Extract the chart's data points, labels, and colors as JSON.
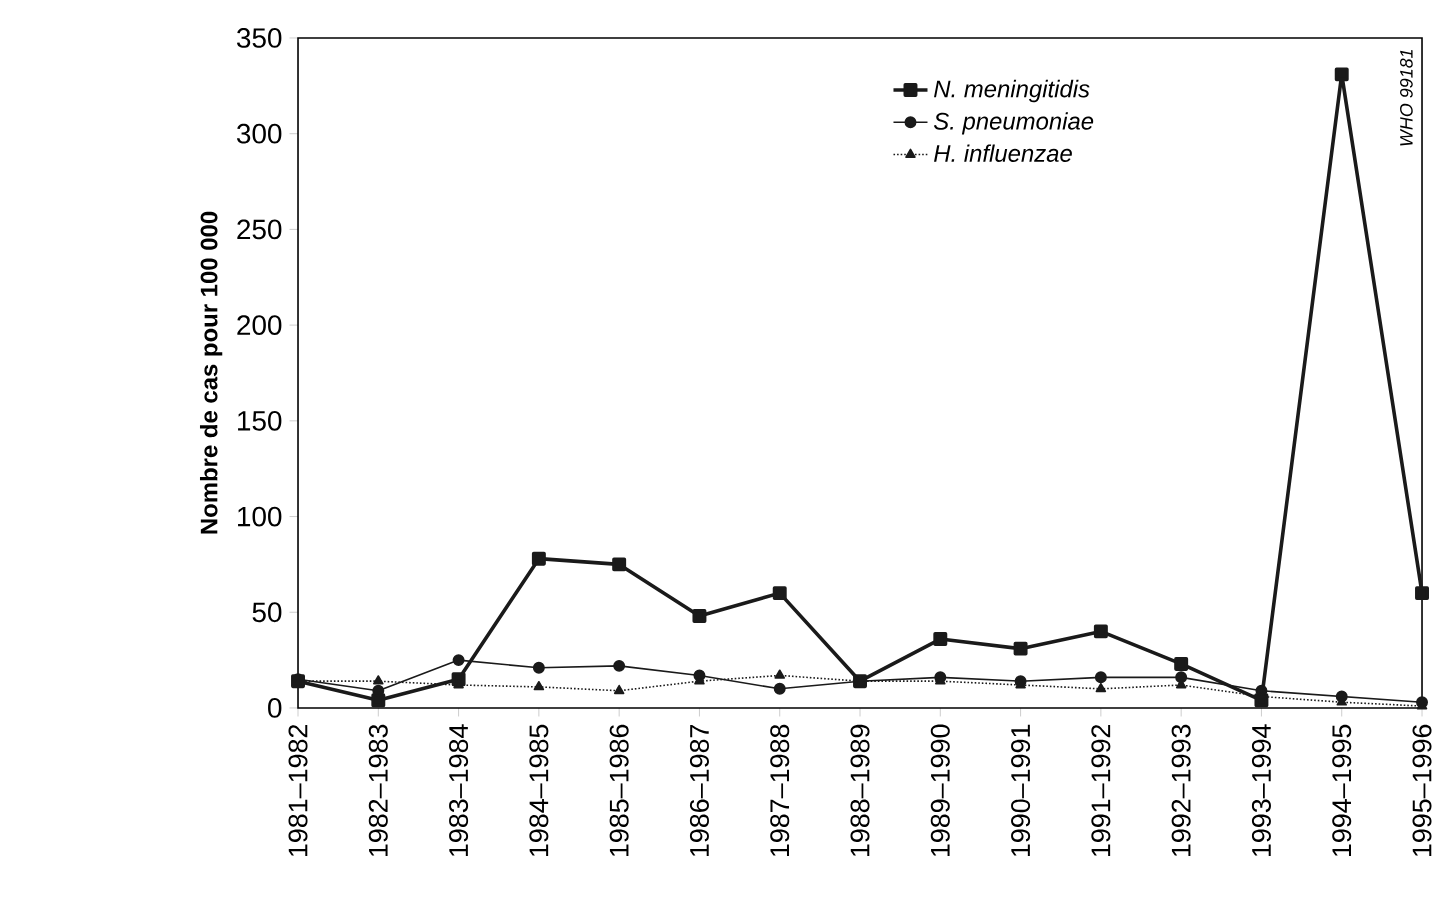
{
  "chart_data": {
    "type": "line",
    "ylabel": "Nombre de cas pour 100 000",
    "categories": [
      "1981–1982",
      "1982–1983",
      "1983–1984",
      "1984–1985",
      "1985–1986",
      "1986–1987",
      "1987–1988",
      "1988–1989",
      "1989–1990",
      "1990–1991",
      "1991–1992",
      "1992–1993",
      "1993–1994",
      "1994–1995",
      "1995–1996"
    ],
    "series": [
      {
        "name": "N. meningitidis",
        "color": "#1a1a1a",
        "marker": "square",
        "line_style": "solid",
        "values": [
          14,
          4,
          15,
          78,
          75,
          48,
          60,
          14,
          36,
          31,
          40,
          23,
          4,
          331,
          60
        ]
      },
      {
        "name": "S. pneumoniae",
        "color": "#1a1a1a",
        "marker": "circle",
        "line_style": "solid",
        "values": [
          15,
          9,
          25,
          21,
          22,
          17,
          10,
          14,
          16,
          14,
          16,
          16,
          9,
          6,
          3
        ]
      },
      {
        "name": "H. influenzae",
        "color": "#1a1a1a",
        "marker": "triangle",
        "line_style": "dotted",
        "values": [
          14,
          14,
          12,
          11,
          9,
          14,
          17,
          14,
          14,
          12,
          10,
          12,
          6,
          3,
          1
        ]
      }
    ],
    "ylim": [
      0,
      350
    ],
    "yticks": [
      0,
      50,
      100,
      150,
      200,
      250,
      300,
      350
    ],
    "grid": false,
    "legend": "top",
    "annotations": [
      "WHO 99181"
    ]
  }
}
